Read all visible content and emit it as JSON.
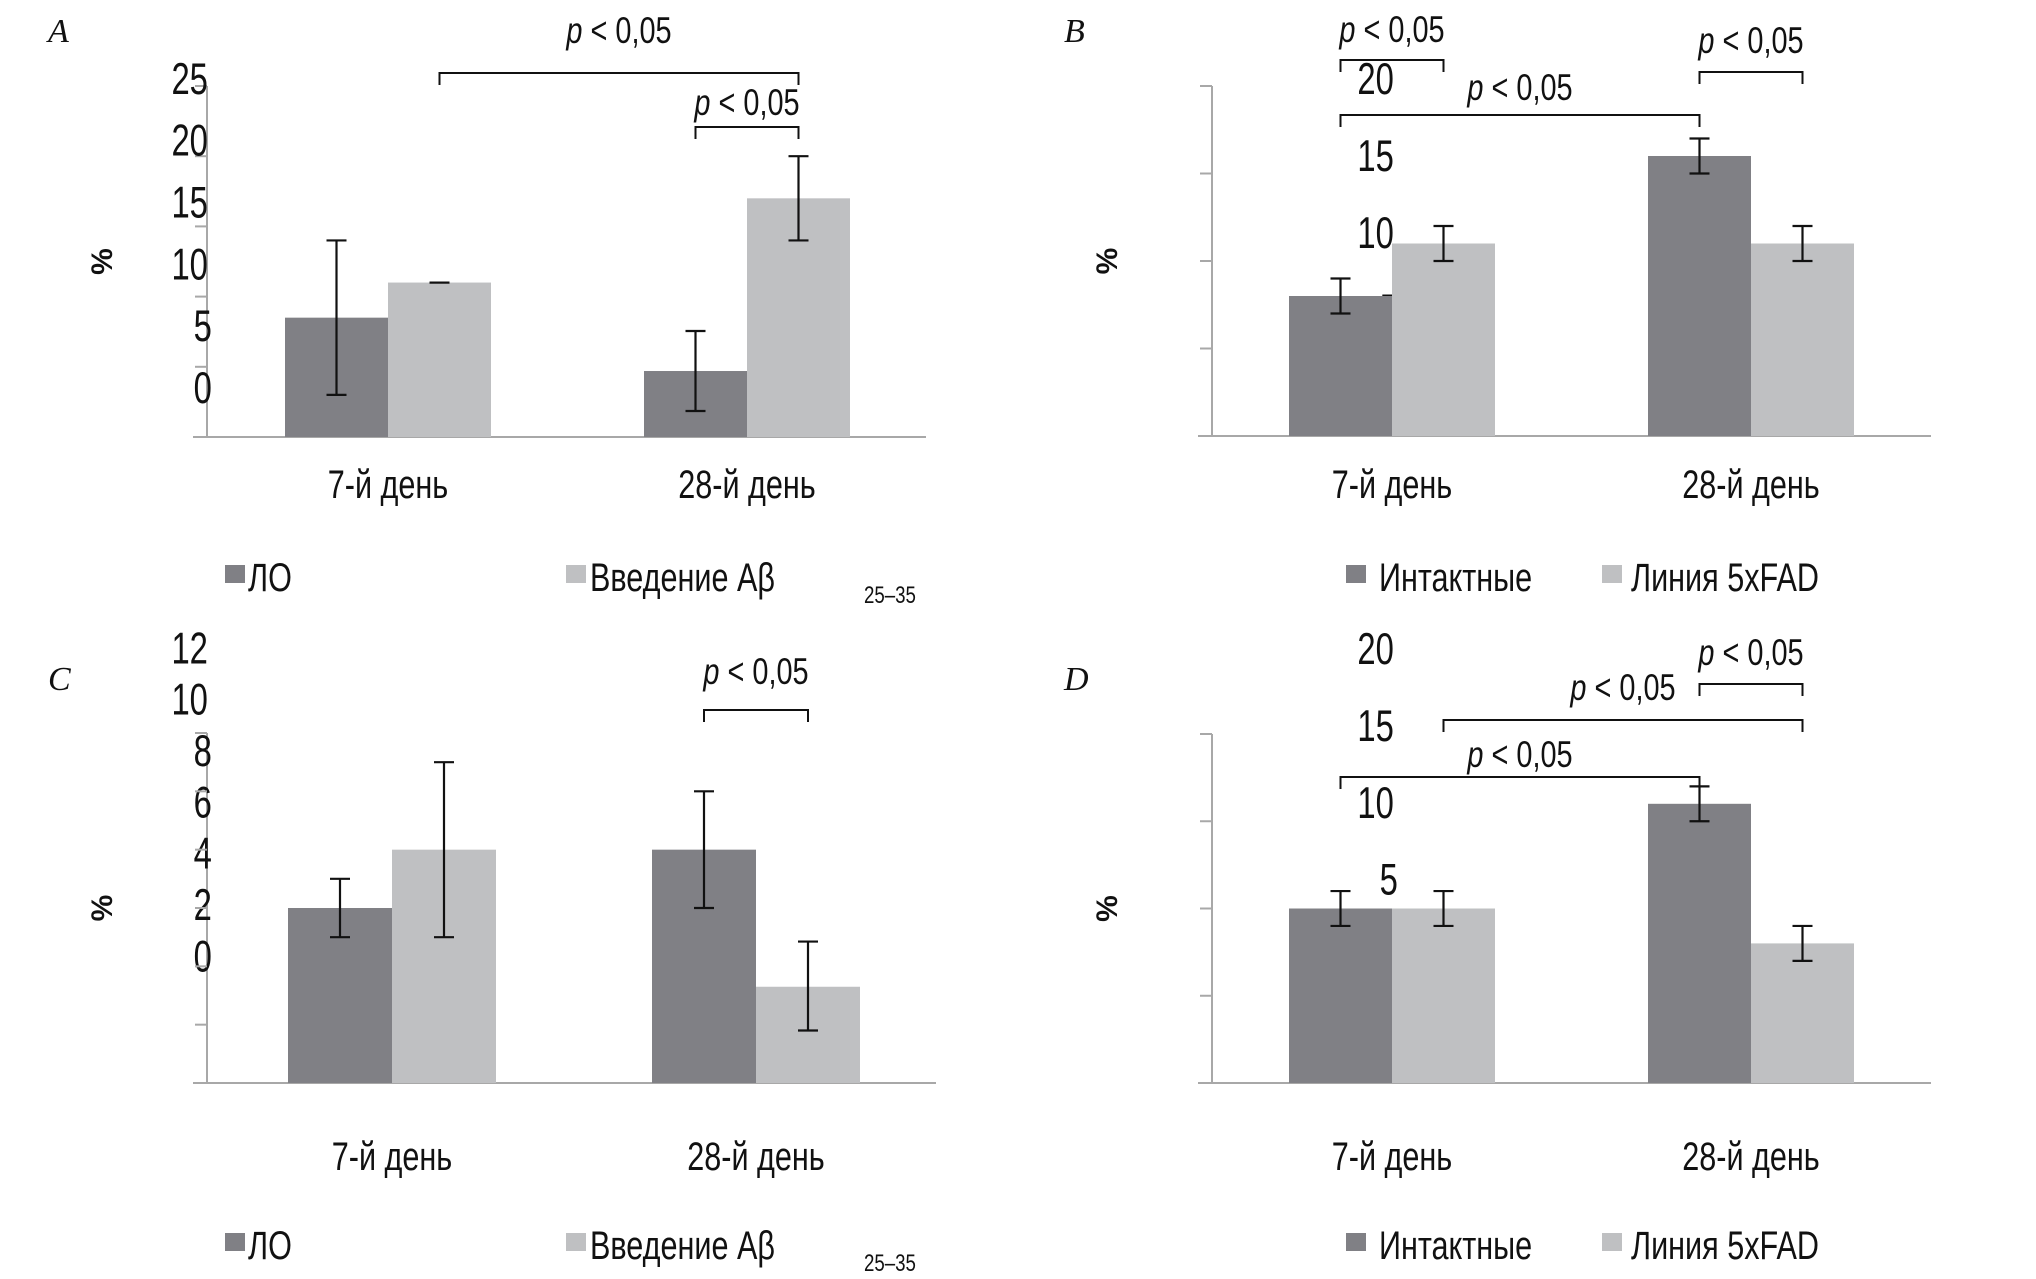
{
  "figure": {
    "panels": [
      "A",
      "B",
      "C",
      "D"
    ]
  },
  "colors": {
    "series_dark": "#808085",
    "series_light": "#bfc0c2",
    "axis": "#a8a8a8",
    "error_bar": "#111111",
    "bracket": "#111111"
  },
  "chart_data": [
    {
      "panel": "A",
      "type": "bar",
      "title": "",
      "xlabel": "",
      "ylabel": "%",
      "ylim": [
        0,
        25
      ],
      "yticks": [
        0,
        5,
        10,
        15,
        20,
        25
      ],
      "categories": [
        "7-й день",
        "28-й день"
      ],
      "legend_position": "bottom",
      "series": [
        {
          "name": "ЛО",
          "name_sub": "",
          "color": "#808085",
          "values": [
            8.5,
            4.7
          ],
          "err_low": [
            3.0,
            1.85
          ],
          "err_high": [
            14.0,
            7.55
          ]
        },
        {
          "name": "Введение Aβ",
          "name_sub": "25–35",
          "color": "#bfc0c2",
          "values": [
            11.0,
            17.0
          ],
          "err_low": [
            11.0,
            14.0
          ],
          "err_high": [
            11.0,
            20.0
          ]
        }
      ],
      "annotations": [
        {
          "text_p": "p",
          "text_rest": " < 0,05",
          "from": [
            0,
            1
          ],
          "to": [
            1,
            1
          ],
          "level": "upper"
        },
        {
          "text_p": "p",
          "text_rest": " < 0,05",
          "from": [
            1,
            0
          ],
          "to": [
            1,
            1
          ],
          "level": "lower"
        }
      ]
    },
    {
      "panel": "B",
      "type": "bar",
      "title": "",
      "xlabel": "",
      "ylabel": "%",
      "ylim": [
        0,
        20
      ],
      "yticks": [
        0,
        5,
        10,
        15,
        20
      ],
      "categories": [
        "7-й день",
        "28-й день"
      ],
      "legend_position": "bottom",
      "series": [
        {
          "name": "Интактные",
          "name_sub": "",
          "color": "#808085",
          "values": [
            8,
            16
          ],
          "err_low": [
            7,
            15
          ],
          "err_high": [
            9,
            17
          ]
        },
        {
          "name": "Линия 5xFAD",
          "name_sub": "",
          "color": "#bfc0c2",
          "values": [
            11,
            11
          ],
          "err_low": [
            10,
            10
          ],
          "err_high": [
            12,
            12
          ]
        }
      ],
      "annotations": [
        {
          "text_p": "p",
          "text_rest": " < 0,05",
          "from": [
            0,
            0
          ],
          "to": [
            0,
            1
          ],
          "level": "top-left"
        },
        {
          "text_p": "p",
          "text_rest": " < 0,05",
          "from": [
            0,
            0
          ],
          "to": [
            1,
            0
          ],
          "level": "middle"
        },
        {
          "text_p": "p",
          "text_rest": " < 0,05",
          "from": [
            1,
            0
          ],
          "to": [
            1,
            1
          ],
          "level": "top-right"
        }
      ]
    },
    {
      "panel": "C",
      "type": "bar",
      "title": "",
      "xlabel": "",
      "ylabel": "%",
      "ylim": [
        0,
        12
      ],
      "yticks": [
        0,
        2,
        4,
        6,
        8,
        10,
        12
      ],
      "categories": [
        "7-й день",
        "28-й день"
      ],
      "legend_position": "bottom",
      "series": [
        {
          "name": "ЛО",
          "name_sub": "",
          "color": "#808085",
          "values": [
            6,
            8
          ],
          "err_low": [
            5,
            6
          ],
          "err_high": [
            7,
            10
          ]
        },
        {
          "name": "Введение Aβ",
          "name_sub": "25–35",
          "color": "#bfc0c2",
          "values": [
            8,
            3.3
          ],
          "err_low": [
            5,
            1.8
          ],
          "err_high": [
            11,
            4.85
          ]
        }
      ],
      "annotations": [
        {
          "text_p": "p",
          "text_rest": " < 0,05",
          "from": [
            1,
            0
          ],
          "to": [
            1,
            1
          ],
          "level": "upper"
        }
      ]
    },
    {
      "panel": "D",
      "type": "bar",
      "title": "",
      "xlabel": "",
      "ylabel": "%",
      "ylim": [
        0,
        20
      ],
      "yticks": [
        0,
        5,
        10,
        15,
        20
      ],
      "categories": [
        "7-й день",
        "28-й день"
      ],
      "legend_position": "bottom",
      "series": [
        {
          "name": "Интактные",
          "name_sub": "",
          "color": "#808085",
          "values": [
            10,
            16
          ],
          "err_low": [
            9,
            15
          ],
          "err_high": [
            11,
            17
          ]
        },
        {
          "name": "Линия 5xFAD",
          "name_sub": "",
          "color": "#bfc0c2",
          "values": [
            10,
            8
          ],
          "err_low": [
            9,
            7
          ],
          "err_high": [
            11,
            9
          ]
        }
      ],
      "annotations": [
        {
          "text_p": "p",
          "text_rest": " < 0,05",
          "from": [
            1,
            0
          ],
          "to": [
            1,
            1
          ],
          "level": "top-right"
        },
        {
          "text_p": "p",
          "text_rest": " < 0,05",
          "from": [
            0,
            1
          ],
          "to": [
            1,
            1
          ],
          "level": "middle"
        },
        {
          "text_p": "p",
          "text_rest": " < 0,05",
          "from": [
            0,
            0
          ],
          "to": [
            1,
            0
          ],
          "level": "lower"
        }
      ]
    }
  ]
}
